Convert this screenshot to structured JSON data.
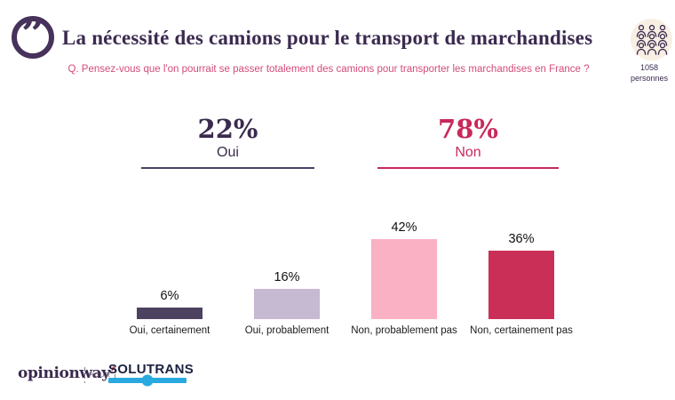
{
  "header": {
    "title": "La nécessité des camions pour le transport de marchandises",
    "question": "Q. Pensez-vous que l'on pourrait se passer totalement des camions pour transporter les marchandises en France ?",
    "sample_count": "1058",
    "sample_unit": "personnes"
  },
  "summary": {
    "yes_value": "22%",
    "yes_label": "Oui",
    "no_value": "78%",
    "no_label": "Non"
  },
  "chart_data": {
    "type": "bar",
    "categories": [
      "Oui, certainement",
      "Oui, probablement",
      "Non, probablement pas",
      "Non, certainement pas"
    ],
    "values": [
      6,
      16,
      42,
      36
    ],
    "value_labels": [
      "6%",
      "16%",
      "42%",
      "36%"
    ],
    "bar_colors": [
      "#4d4160",
      "#c6b9d2",
      "#fab1c3",
      "#c92f57"
    ],
    "groups": [
      {
        "label": "Oui",
        "total_label": "22%",
        "total": 22,
        "color": "#3a2b4d"
      },
      {
        "label": "Non",
        "total_label": "78%",
        "total": 78,
        "color": "#c8295a"
      }
    ],
    "title": "La nécessité des camions pour le transport de marchandises",
    "xlabel": "",
    "ylabel": "",
    "ylim": [
      0,
      50
    ],
    "grid": false,
    "legend": false,
    "value_labels_position": "above-bars"
  },
  "colors": {
    "title_purple": "#3b2a50",
    "question_pink": "#d34b7b",
    "quote_icon": "#46325a",
    "yes_purple": "#3a2b4d",
    "yes_underline": "#4a4266",
    "no_crimson": "#c8295a",
    "badge_background": "#f8efe3",
    "badge_people_stroke": "#3b2a50",
    "opinionway_purple": "#3a2b4f",
    "opinionway_mark_red": "#d13239",
    "solutrans_navy": "#1b2140",
    "solutrans_blue": "#29a9e0"
  },
  "footer": {
    "opinionway": "opinionway",
    "opinionway_mark": "’",
    "separator_word": "POUR",
    "solutrans": "SOLUTRANS"
  },
  "icons": {
    "quote_icon": "”",
    "people_group_icon": "nine-person-grid"
  }
}
